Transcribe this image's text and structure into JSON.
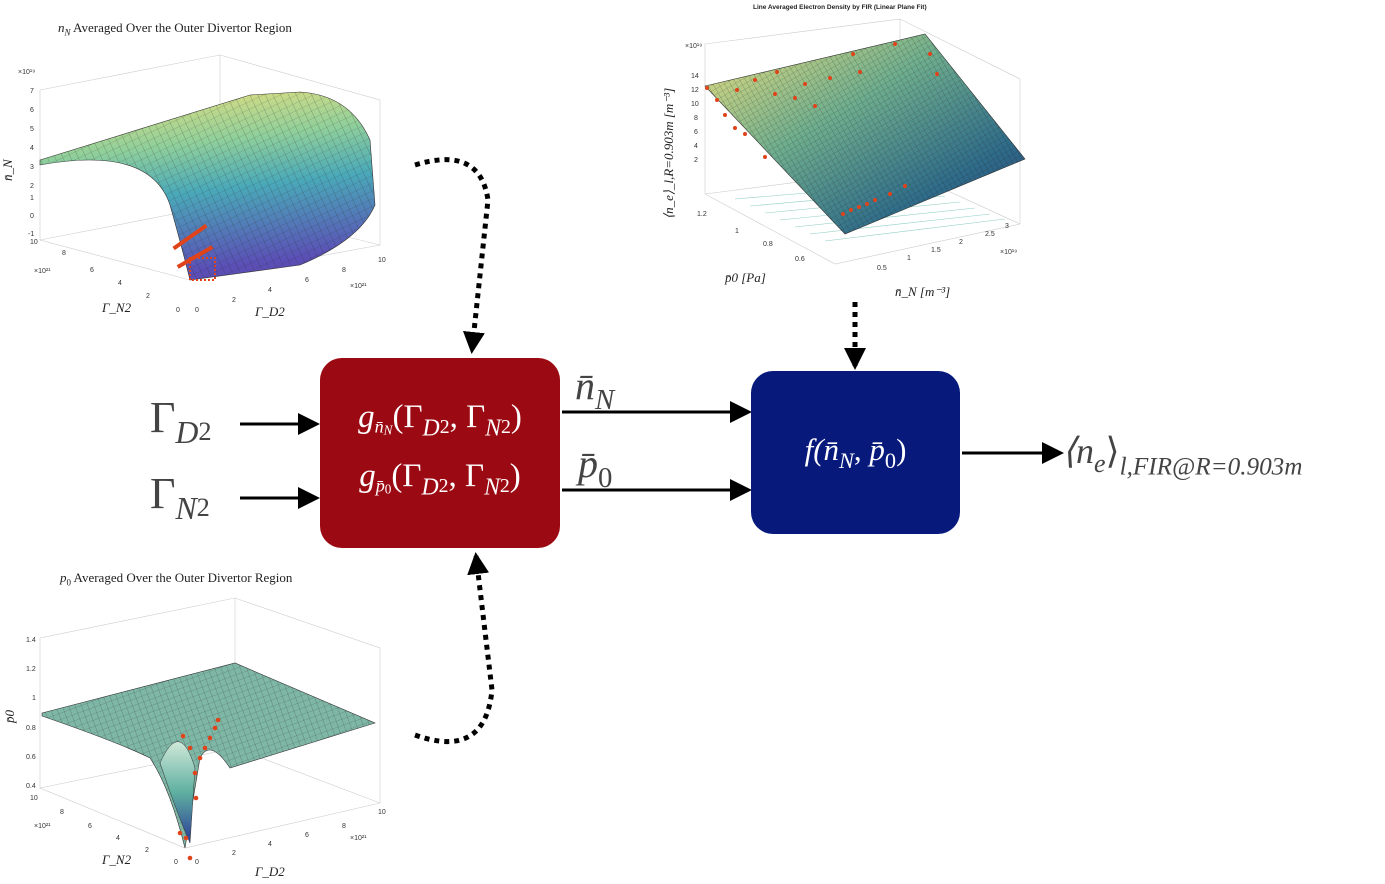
{
  "plot_top_left": {
    "title": "n_N Averaged Over the Outer Divertor Region",
    "title_base": "n",
    "title_sub": "N",
    "title_rest": " Averaged Over the Outer Divertor Region",
    "exponent": "×10¹⁹",
    "z_ticks": [
      "7",
      "6",
      "5",
      "4",
      "3",
      "2",
      "1",
      "0",
      "-1"
    ],
    "x_ticks": [
      "10",
      "8",
      "6",
      "4",
      "2",
      "0"
    ],
    "x_exponent": "×10²¹",
    "y_ticks": [
      "0",
      "2",
      "4",
      "6",
      "8",
      "10"
    ],
    "y_exponent": "×10²¹",
    "zlabel": "n̄_N",
    "xlabel": "Γ_N2",
    "ylabel": "Γ_D2"
  },
  "plot_top_right": {
    "title": "Line Averaged Electron Density by FIR (Linear Plane Fit)",
    "exponent": "×10¹⁹",
    "z_ticks": [
      "14",
      "12",
      "10",
      "8",
      "6",
      "4",
      "2"
    ],
    "x_ticks": [
      "1.2",
      "1",
      "0.8",
      "0.6"
    ],
    "y_ticks": [
      "0.5",
      "1",
      "1.5",
      "2",
      "2.5",
      "3"
    ],
    "y_exponent": "×10¹⁹",
    "zlabel": "⟨n_e⟩_l,R=0.903m [m⁻³]",
    "xlabel": "p̄0 [Pa]",
    "ylabel": "n̄_N [m⁻³]"
  },
  "plot_bottom_left": {
    "title_base": "p",
    "title_sub": "0",
    "title_rest": " Averaged Over the Outer Divertor Region",
    "z_ticks": [
      "1.4",
      "1.2",
      "1",
      "0.8",
      "0.6",
      "0.4"
    ],
    "x_ticks": [
      "10",
      "8",
      "6",
      "4",
      "2",
      "0"
    ],
    "x_exponent": "×10²¹",
    "y_ticks": [
      "0",
      "2",
      "4",
      "6",
      "8",
      "10"
    ],
    "y_exponent": "×10²¹",
    "zlabel": "p̄0",
    "xlabel": "Γ_N2",
    "ylabel": "Γ_D2"
  },
  "inputs": {
    "gamma_d2": {
      "base": "Γ",
      "sub": "D",
      "subsub": "2"
    },
    "gamma_n2": {
      "base": "Γ",
      "sub": "N",
      "subsub": "2"
    }
  },
  "red_block": {
    "line1": "g_n̄N(Γ_D2, Γ_N2)",
    "line2": "g_p̄0(Γ_D2, Γ_N2)",
    "g": "g",
    "args": "(Γ",
    "comma": ", Γ",
    "close": ")",
    "sub1": "n̄",
    "sub1_sub": "N",
    "sub2": "p̄",
    "sub2_sub": "0",
    "D": "D",
    "N": "N",
    "two": "2",
    "color": "#9b0a12"
  },
  "mid_labels": {
    "n_bar": {
      "base": "n̄",
      "sub": "N"
    },
    "p_bar": {
      "base": "p̄",
      "sub": "0"
    }
  },
  "blue_block": {
    "text": "f(n̄N, p̄0)",
    "f": "f(",
    "n": "n̄",
    "n_sub": "N",
    "comma": ", ",
    "p": "p̄",
    "p_sub": "0",
    "close": ")",
    "color": "#071a7c"
  },
  "output": {
    "text": "⟨n_e⟩_l,FIR@R=0.903m",
    "open": "⟨n",
    "e": "e",
    "close": "⟩",
    "sub": "l,FIR@R=0.903m"
  }
}
